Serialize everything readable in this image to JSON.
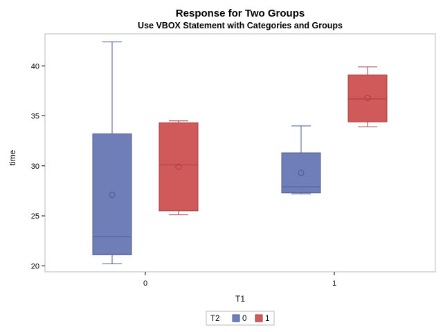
{
  "chart_data": {
    "type": "box",
    "title": "Response for Two Groups",
    "subtitle": "Use VBOX Statement with Categories and Groups",
    "xlabel": "T1",
    "ylabel": "time",
    "categories": [
      "0",
      "1"
    ],
    "ylim": [
      19.4,
      43.2
    ],
    "yticks": [
      20,
      25,
      30,
      35,
      40
    ],
    "grid": false,
    "legend": {
      "title": "T2",
      "position": "bottom-center",
      "entries": [
        "0",
        "1"
      ]
    },
    "series": [
      {
        "name": "0",
        "color": "#6f7eb7",
        "stroke": "#4c5a96",
        "boxes": [
          {
            "category": "0",
            "min": 20.2,
            "q1": 21.1,
            "median": 22.9,
            "q3": 33.2,
            "max": 42.4,
            "mean": 27.1
          },
          {
            "category": "1",
            "min": 27.2,
            "q1": 27.3,
            "median": 27.9,
            "q3": 31.3,
            "max": 34.0,
            "mean": 29.3
          }
        ]
      },
      {
        "name": "1",
        "color": "#d05a5a",
        "stroke": "#a63c3c",
        "boxes": [
          {
            "category": "0",
            "min": 25.1,
            "q1": 25.5,
            "median": 30.1,
            "q3": 34.3,
            "max": 34.5,
            "mean": 29.9
          },
          {
            "category": "1",
            "min": 33.9,
            "q1": 34.4,
            "median": 36.7,
            "q3": 39.1,
            "max": 39.9,
            "mean": 36.8
          }
        ]
      }
    ]
  }
}
